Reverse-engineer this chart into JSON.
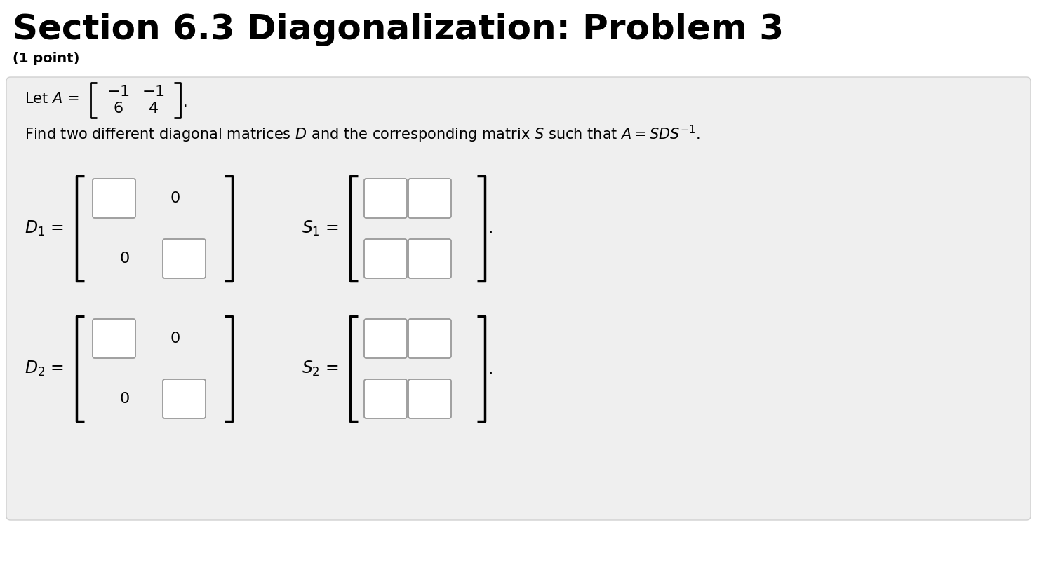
{
  "title": "Section 6.3 Diagonalization: Problem 3",
  "subtitle": "(1 point)",
  "bg_color": "#ffffff",
  "panel_color": "#efefef",
  "panel_edge_color": "#d0d0d0",
  "title_fontsize": 36,
  "subtitle_fontsize": 14,
  "body_fontsize": 15,
  "label_fontsize": 17,
  "matrix_fontsize": 16
}
